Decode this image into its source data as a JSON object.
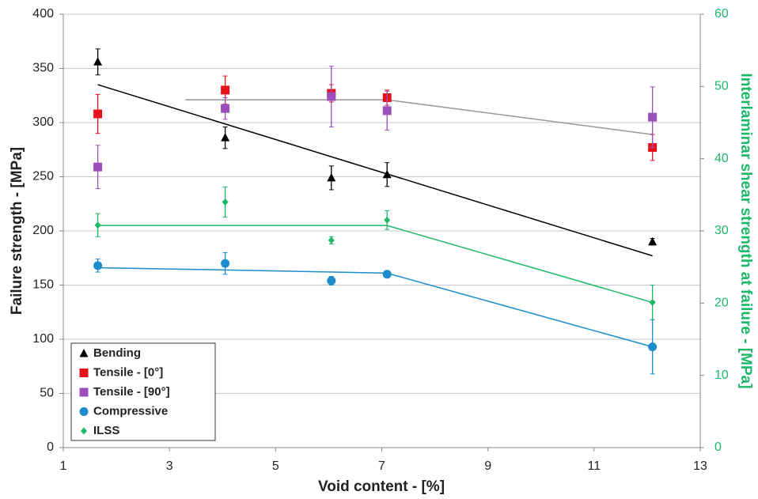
{
  "chart_data": {
    "type": "scatter",
    "xlabel": "Void content - [%]",
    "ylabel": "Failure strength - [MPa]",
    "y2label": "Interlaminar shear strength at failure - [MPa]",
    "xlim": [
      1,
      13
    ],
    "xticks": [
      1,
      3,
      5,
      7,
      9,
      11,
      13
    ],
    "ylim": [
      0,
      400
    ],
    "yticks": [
      0,
      50,
      100,
      150,
      200,
      250,
      300,
      350,
      400
    ],
    "y2lim": [
      0,
      60
    ],
    "y2ticks": [
      0,
      10,
      20,
      30,
      40,
      50,
      60
    ],
    "grid": true,
    "legend": "lower left",
    "x": [
      1.65,
      4.05,
      6.05,
      7.1,
      12.1
    ],
    "series": [
      {
        "name": "Bending",
        "color": "#000000",
        "marker": "triangle",
        "values": [
          356,
          286,
          249,
          252,
          190
        ],
        "errors": [
          12,
          10,
          11,
          11,
          3
        ]
      },
      {
        "name": "Tensile - [0°]",
        "color": "#e8121b",
        "marker": "square",
        "values": [
          308,
          330,
          327,
          323,
          277
        ],
        "errors": [
          18,
          13,
          8,
          7,
          12
        ]
      },
      {
        "name": "Tensile - [90°]",
        "color": "#9a4fba",
        "marker": "square",
        "values": [
          259,
          313,
          324,
          311,
          305
        ],
        "errors": [
          20,
          10,
          28,
          18,
          28
        ]
      },
      {
        "name": "Compressive",
        "color": "#1b8ccc",
        "marker": "circle",
        "values": [
          168,
          170,
          154,
          160,
          93
        ],
        "errors": [
          6,
          10,
          4,
          3,
          25
        ]
      },
      {
        "name": "ILSS",
        "color": "#1bb86a",
        "marker": "diamond",
        "axis": "y2",
        "values": [
          30.8,
          34,
          28.7,
          31.5,
          20.1
        ],
        "errors": [
          1.6,
          2.1,
          0.5,
          1.3,
          2.4
        ]
      }
    ],
    "trendlines": [
      {
        "color": "#000000",
        "x": [
          1.65,
          12.1
        ],
        "values": [
          335,
          177
        ]
      },
      {
        "color": "#999999",
        "x": [
          3.3,
          7.1,
          12.1
        ],
        "values": [
          321,
          321,
          289
        ]
      },
      {
        "color": "#1bb86a",
        "axis": "y2",
        "x": [
          1.65,
          7.1,
          12.1
        ],
        "values": [
          30.75,
          30.75,
          20.1
        ]
      },
      {
        "color": "#1b8ccc",
        "x": [
          1.65,
          4.05,
          7.1,
          12.1
        ],
        "values": [
          166,
          164,
          161,
          93
        ]
      }
    ]
  }
}
